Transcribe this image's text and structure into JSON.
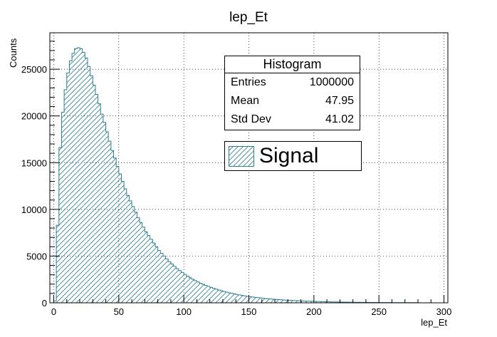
{
  "chart_data": {
    "type": "bar",
    "title": "lep_Et",
    "xlabel": "lep_Et",
    "ylabel": "Counts",
    "xlim": [
      -3,
      303
    ],
    "ylim": [
      0,
      28900
    ],
    "xticks": [
      "0",
      "50",
      "100",
      "150",
      "200",
      "250",
      "300"
    ],
    "yticks": [
      "0",
      "5000",
      "10000",
      "15000",
      "20000",
      "25000"
    ],
    "grid": true,
    "fill_style": "diagonal hatch",
    "color": "#2e7d91",
    "bin_width": 2,
    "x_start": 0,
    "values": [
      200,
      8300,
      16600,
      20400,
      22800,
      24600,
      25900,
      26700,
      27200,
      27300,
      27200,
      26800,
      26200,
      25300,
      24300,
      23300,
      22300,
      21300,
      20200,
      19300,
      18300,
      17300,
      16300,
      15500,
      14600,
      13800,
      13000,
      12200,
      11500,
      10900,
      10300,
      9700,
      9100,
      8600,
      8100,
      7600,
      7200,
      6800,
      6400,
      6000,
      5600,
      5300,
      5000,
      4700,
      4400,
      4150,
      3900,
      3650,
      3450,
      3250,
      3050,
      2850,
      2680,
      2520,
      2370,
      2230,
      2100,
      1980,
      1860,
      1750,
      1650,
      1550,
      1460,
      1370,
      1290,
      1210,
      1140,
      1070,
      1010,
      950,
      890,
      840,
      790,
      740,
      700,
      660,
      620,
      580,
      550,
      520,
      490,
      460,
      430,
      410,
      380,
      360,
      340,
      320,
      300,
      285,
      270,
      255,
      240,
      225,
      210,
      200,
      190,
      180,
      170,
      160,
      150,
      142,
      134,
      126,
      118,
      111,
      104,
      98,
      92,
      87,
      82,
      77,
      72,
      68,
      64,
      60,
      56,
      53,
      50,
      47,
      44,
      41,
      39,
      37,
      35,
      33,
      31,
      29,
      27,
      25,
      24,
      23,
      22,
      21,
      20,
      19,
      18,
      17,
      16,
      15
    ],
    "series": [
      {
        "name": "Signal"
      }
    ],
    "legend_position": "top-right"
  },
  "stats": {
    "title": "Histogram",
    "rows": [
      {
        "label": "Entries",
        "value": "1000000"
      },
      {
        "label": "Mean",
        "value": "47.95"
      },
      {
        "label": "Std Dev",
        "value": "41.02"
      }
    ]
  },
  "legend": {
    "label": "Signal"
  }
}
